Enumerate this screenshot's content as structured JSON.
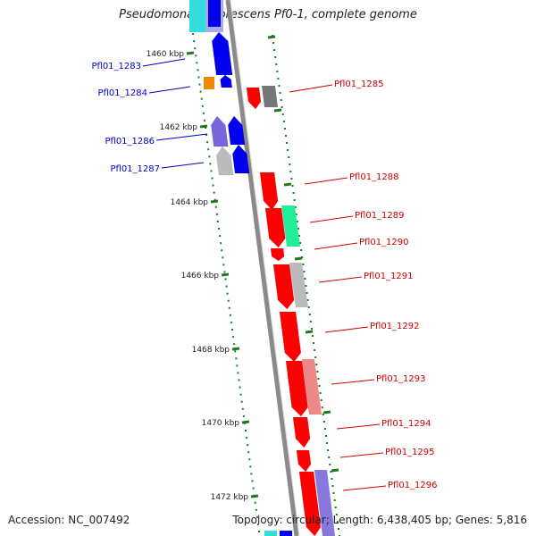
{
  "map": {
    "title": "Pseudomonas fluorescens Pf0-1, complete genome",
    "accession": "Accession: NC_007492",
    "summary": "Topology: circular; Length: 6,438,405 bp; Genes: 5,816"
  },
  "colors": {
    "backbone": "#8a8a8a",
    "tick": "#1e7a1e",
    "forward_label": "#cc0000",
    "reverse_label": "#0000cc",
    "fwd_main": "#ff0000",
    "rev_main": "#0000ee",
    "orange": "#ee8800",
    "gray": "#777777",
    "lightgray": "#bbbbbb",
    "green": "#22ee99",
    "pink": "#ee8888",
    "violet": "#8877dd",
    "cyan": "#33dddd"
  },
  "kbp_marks": [
    "1460 kbp",
    "1462 kbp",
    "1464 kbp",
    "1466 kbp",
    "1468 kbp",
    "1470 kbp",
    "1472 kbp"
  ],
  "genes": [
    {
      "id": "Pfl01_1283",
      "strand": "reverse"
    },
    {
      "id": "Pfl01_1284",
      "strand": "reverse"
    },
    {
      "id": "Pfl01_1285",
      "strand": "forward"
    },
    {
      "id": "Pfl01_1286",
      "strand": "reverse"
    },
    {
      "id": "Pfl01_1287",
      "strand": "reverse"
    },
    {
      "id": "Pfl01_1288",
      "strand": "forward"
    },
    {
      "id": "Pfl01_1289",
      "strand": "forward"
    },
    {
      "id": "Pfl01_1290",
      "strand": "forward"
    },
    {
      "id": "Pfl01_1291",
      "strand": "forward"
    },
    {
      "id": "Pfl01_1292",
      "strand": "forward"
    },
    {
      "id": "Pfl01_1293",
      "strand": "forward"
    },
    {
      "id": "Pfl01_1294",
      "strand": "forward"
    },
    {
      "id": "Pfl01_1295",
      "strand": "forward"
    },
    {
      "id": "Pfl01_1296",
      "strand": "forward"
    }
  ]
}
